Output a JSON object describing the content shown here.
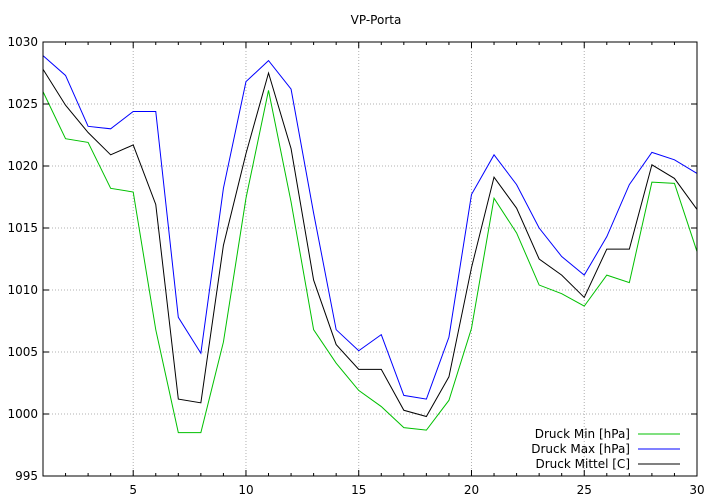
{
  "chart_data": {
    "type": "line",
    "title": "VP-Porta",
    "xlabel": "",
    "ylabel": "",
    "xlim": [
      1,
      30
    ],
    "ylim": [
      995,
      1030
    ],
    "xticks": [
      5,
      10,
      15,
      20,
      25,
      30
    ],
    "yticks": [
      995,
      1000,
      1005,
      1010,
      1015,
      1020,
      1025,
      1030
    ],
    "grid": true,
    "legend_position": "bottom-right",
    "x": [
      1,
      2,
      3,
      4,
      5,
      6,
      7,
      8,
      9,
      10,
      11,
      12,
      13,
      14,
      15,
      16,
      17,
      18,
      19,
      20,
      21,
      22,
      23,
      24,
      25,
      26,
      27,
      28,
      29,
      30
    ],
    "series": [
      {
        "name": "Druck Min [hPa]",
        "color": "#00c000",
        "values": [
          1026.0,
          1022.2,
          1021.9,
          1018.2,
          1017.9,
          1006.8,
          998.5,
          998.5,
          1005.8,
          1017.4,
          1026.1,
          1017.1,
          1006.8,
          1004.1,
          1001.9,
          1000.6,
          998.9,
          998.7,
          1001.1,
          1006.9,
          1017.4,
          1014.6,
          1010.4,
          1009.7,
          1008.7,
          1011.2,
          1010.6,
          1018.7,
          1018.6,
          1013.1
        ]
      },
      {
        "name": "Druck Max [hPa]",
        "color": "#0000ff",
        "values": [
          1028.9,
          1027.3,
          1023.2,
          1023.0,
          1024.4,
          1024.4,
          1007.8,
          1004.9,
          1018.2,
          1026.8,
          1028.5,
          1026.2,
          1016.2,
          1006.8,
          1005.1,
          1006.4,
          1001.5,
          1001.2,
          1006.2,
          1017.7,
          1020.9,
          1018.5,
          1015.0,
          1012.7,
          1011.2,
          1014.3,
          1018.5,
          1021.1,
          1020.5,
          1019.4
        ]
      },
      {
        "name": "Druck Mittel [C]",
        "color": "#000000",
        "values": [
          1027.8,
          1024.9,
          1022.7,
          1020.9,
          1021.7,
          1016.9,
          1001.2,
          1000.9,
          1013.6,
          1021.0,
          1027.5,
          1021.4,
          1010.8,
          1005.6,
          1003.6,
          1003.6,
          1000.3,
          999.8,
          1003.0,
          1011.8,
          1019.1,
          1016.6,
          1012.5,
          1011.2,
          1009.4,
          1013.3,
          1013.3,
          1020.1,
          1019.0,
          1016.5
        ]
      }
    ]
  }
}
